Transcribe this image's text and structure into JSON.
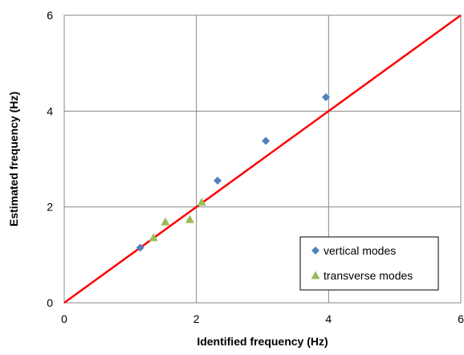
{
  "chart_data": {
    "type": "scatter",
    "title": "",
    "xlabel": "Identified frequency  (Hz)",
    "ylabel": "Estimated frequency  (Hz)",
    "xlim": [
      0,
      6
    ],
    "ylim": [
      0,
      6
    ],
    "xticks": [
      "0",
      "2",
      "4",
      "6"
    ],
    "yticks": [
      "0",
      "2",
      "4",
      "6"
    ],
    "grid": true,
    "legend_position": "bottom-right",
    "series": [
      {
        "name": "vertical modes",
        "marker": "diamond",
        "color": "#4F81BD",
        "points": [
          {
            "x": 1.15,
            "y": 1.15
          },
          {
            "x": 2.32,
            "y": 2.55
          },
          {
            "x": 3.05,
            "y": 3.38
          },
          {
            "x": 3.96,
            "y": 4.29
          }
        ]
      },
      {
        "name": "transverse modes",
        "marker": "triangle",
        "color": "#9BBB59",
        "points": [
          {
            "x": 1.35,
            "y": 1.36
          },
          {
            "x": 1.53,
            "y": 1.69
          },
          {
            "x": 1.9,
            "y": 1.74
          },
          {
            "x": 2.08,
            "y": 2.1
          }
        ]
      }
    ],
    "reference_line": {
      "color": "#FF0000",
      "from": [
        0,
        0
      ],
      "to": [
        6,
        6
      ]
    }
  }
}
